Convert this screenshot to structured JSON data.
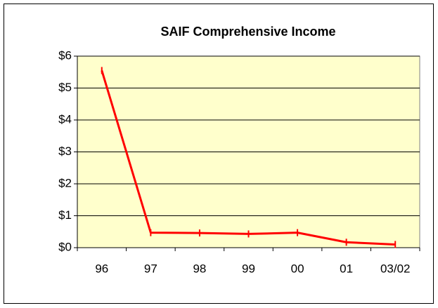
{
  "chart_data": {
    "type": "line",
    "title": "SAIF Comprehensive Income",
    "categories": [
      "96",
      "97",
      "98",
      "99",
      "00",
      "01",
      "03/02"
    ],
    "series": [
      {
        "name": "SAIF Comprehensive Income",
        "color": "#ff0000",
        "values": [
          5.55,
          0.47,
          0.46,
          0.43,
          0.47,
          0.17,
          0.1
        ]
      }
    ],
    "ylim": [
      0,
      6
    ],
    "yticks": [
      {
        "value": 0,
        "label": "$0"
      },
      {
        "value": 1,
        "label": "$1"
      },
      {
        "value": 2,
        "label": "$2"
      },
      {
        "value": 3,
        "label": "$3"
      },
      {
        "value": 4,
        "label": "$4"
      },
      {
        "value": 5,
        "label": "$5"
      },
      {
        "value": 6,
        "label": "$6"
      }
    ],
    "grid": true,
    "plot_background": "#ffffcc"
  }
}
